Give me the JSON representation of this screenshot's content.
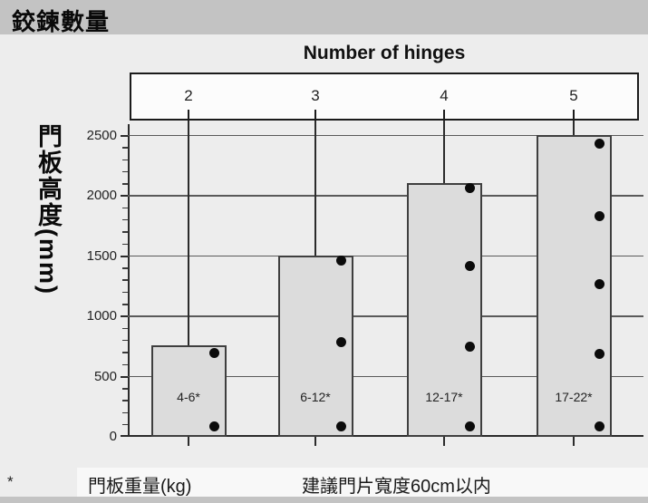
{
  "header": {
    "title": "鉸鍊數量"
  },
  "chart_data": {
    "type": "bar",
    "title": "Number of hinges",
    "ylabel": "門板高度(mm)",
    "ylabel_meaning": "door panel height (mm)",
    "ylim": [
      0,
      2550
    ],
    "y_major_tick": 500,
    "y_minor_tick": 100,
    "y_tick_labels": [
      "0",
      "500",
      "1000",
      "1500",
      "2000",
      "2500"
    ],
    "x_axis_title": "Number of hinges",
    "categories": [
      "2",
      "3",
      "4",
      "5"
    ],
    "grid": true,
    "legend": "none",
    "bars": [
      {
        "hinges": "2",
        "weight_label": "4-6*",
        "door_height_mm": 750,
        "hinge_positions_mm": [
          680,
          75
        ]
      },
      {
        "hinges": "3",
        "weight_label": "6-12*",
        "door_height_mm": 1500,
        "hinge_positions_mm": [
          1450,
          770,
          75
        ]
      },
      {
        "hinges": "4",
        "weight_label": "12-17*",
        "door_height_mm": 2100,
        "hinge_positions_mm": [
          2050,
          1400,
          730,
          75
        ]
      },
      {
        "hinges": "5",
        "weight_label": "17-22*",
        "door_height_mm": 2500,
        "hinge_positions_mm": [
          2420,
          1820,
          1250,
          670,
          75
        ]
      }
    ]
  },
  "footer": {
    "asterisk": "*",
    "weight_note": "門板重量(kg)",
    "width_note": "建議門片寬度60cm以内"
  },
  "colors": {
    "header_bar": "#c3c3c3",
    "page_background": "#ededed",
    "bar_fill": "#dcdcdc",
    "bar_border": "#3f3f3f",
    "dot": "#0b0b0b",
    "box_fill": "#fcfcfc",
    "footer_strip": "#f8f8f8"
  }
}
